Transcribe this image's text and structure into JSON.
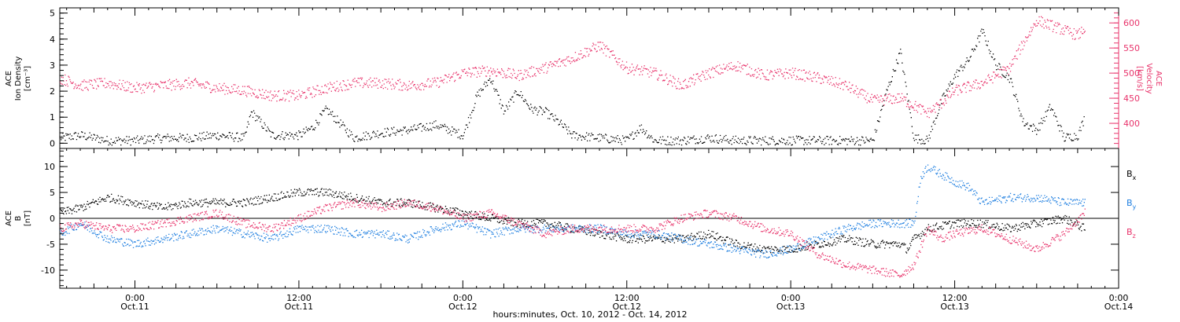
{
  "colors": {
    "ink": "#000000",
    "magenta": "#e8336b",
    "blue": "#1f7fe0"
  },
  "xaxis": {
    "label": "hours:minutes, Oct. 10, 2012 - Oct. 14, 2012",
    "range_hours": [
      -5.5,
      72
    ],
    "major_ticks": [
      {
        "hour": 0,
        "time": "0:00",
        "date": "Oct.11"
      },
      {
        "hour": 12,
        "time": "12:00",
        "date": "Oct.11"
      },
      {
        "hour": 24,
        "time": "0:00",
        "date": "Oct.12"
      },
      {
        "hour": 36,
        "time": "12:00",
        "date": "Oct.12"
      },
      {
        "hour": 48,
        "time": "0:00",
        "date": "Oct.13"
      },
      {
        "hour": 60,
        "time": "12:00",
        "date": "Oct.13"
      },
      {
        "hour": 72,
        "time": "0:00",
        "date": "Oct.14"
      }
    ],
    "data_end_hour": 69.5
  },
  "chart_data": [
    {
      "type": "scatter",
      "panel": "top",
      "ylabel_lines": [
        "ACE",
        "Ion Density",
        "[cm⁻³]"
      ],
      "ylim": [
        -0.2,
        5.2
      ],
      "y_ticks": [
        0,
        1,
        2,
        3,
        4,
        5
      ],
      "y2label_lines": [
        "ACE",
        "Velocity",
        "[km/s]"
      ],
      "y2lim": [
        350,
        630
      ],
      "y2_ticks": [
        400,
        450,
        500,
        550,
        600
      ],
      "series": [
        {
          "axis": "left",
          "color": "#000000",
          "x": [
            -5.5,
            -4,
            -2,
            0,
            2,
            4,
            6,
            8,
            8.5,
            10,
            12,
            13,
            14,
            16,
            18,
            20,
            22,
            24,
            25,
            26,
            27,
            28,
            29,
            30,
            31,
            32,
            34,
            36,
            37,
            38,
            40,
            42,
            44,
            46,
            48,
            50,
            52,
            54,
            55,
            56,
            57,
            58,
            59,
            60,
            61,
            62,
            63,
            64,
            65,
            66,
            67,
            68,
            69,
            69.5
          ],
          "y": [
            0.2,
            0.3,
            0.1,
            0.1,
            0.2,
            0.2,
            0.3,
            0.2,
            1.2,
            0.3,
            0.3,
            0.6,
            1.3,
            0.2,
            0.4,
            0.5,
            0.7,
            0.3,
            1.8,
            2.5,
            1.2,
            2.0,
            1.3,
            1.2,
            0.8,
            0.3,
            0.2,
            0.1,
            0.6,
            0.1,
            0.1,
            0.2,
            0.1,
            0.1,
            0.1,
            0.1,
            0.1,
            0.1,
            2.0,
            3.5,
            0.2,
            0.1,
            1.6,
            2.6,
            3.2,
            4.3,
            3.0,
            2.5,
            0.8,
            0.5,
            1.4,
            0.2,
            0.3,
            1.0
          ]
        },
        {
          "axis": "right",
          "color": "#e8336b",
          "x": [
            -5.5,
            -4,
            -2,
            0,
            2,
            4,
            6,
            8,
            10,
            12,
            14,
            16,
            18,
            20,
            22,
            24,
            26,
            28,
            30,
            32,
            34,
            36,
            38,
            40,
            42,
            44,
            46,
            48,
            50,
            52,
            54,
            56,
            58,
            59,
            60,
            62,
            64,
            65,
            66,
            67,
            68,
            69,
            69.5
          ],
          "y": [
            490,
            475,
            480,
            470,
            475,
            480,
            470,
            465,
            455,
            455,
            470,
            480,
            480,
            475,
            480,
            500,
            505,
            495,
            510,
            530,
            555,
            510,
            500,
            475,
            500,
            515,
            495,
            500,
            490,
            475,
            445,
            450,
            420,
            440,
            465,
            480,
            510,
            560,
            605,
            595,
            585,
            575,
            590
          ]
        }
      ]
    },
    {
      "type": "scatter",
      "panel": "bottom",
      "ylabel_lines": [
        "ACE",
        "B",
        "[nT]"
      ],
      "ylim": [
        -13.5,
        13.5
      ],
      "y_ticks": [
        -10,
        -5,
        0,
        5,
        10
      ],
      "legend": [
        {
          "label": "B",
          "sub": "x",
          "color": "#000000"
        },
        {
          "label": "B",
          "sub": "y",
          "color": "#1f7fe0"
        },
        {
          "label": "B",
          "sub": "z",
          "color": "#e8336b"
        }
      ],
      "series": [
        {
          "name": "Bx",
          "color": "#000000",
          "x": [
            -5.5,
            -4,
            -2,
            0,
            2,
            4,
            6,
            8,
            10,
            12,
            14,
            16,
            18,
            20,
            22,
            24,
            26,
            28,
            30,
            32,
            34,
            36,
            38,
            40,
            42,
            44,
            46,
            48,
            50,
            52,
            54,
            56,
            56.5,
            57,
            58,
            60,
            62,
            64,
            66,
            68,
            69.5
          ],
          "y": [
            1,
            2,
            4,
            3,
            2,
            3,
            3,
            3,
            4,
            5,
            5,
            4,
            3,
            3,
            2,
            1,
            0,
            -1,
            -1,
            -2,
            -3,
            -4,
            -4,
            -4,
            -3,
            -5,
            -6,
            -6,
            -5,
            -4,
            -5,
            -5,
            -6,
            -4,
            -2,
            -1,
            -1,
            -2,
            -1,
            0,
            -2
          ]
        },
        {
          "name": "By",
          "color": "#1f7fe0",
          "x": [
            -5.5,
            -4,
            -2,
            0,
            2,
            4,
            6,
            8,
            10,
            12,
            14,
            16,
            18,
            20,
            22,
            24,
            26,
            28,
            30,
            32,
            34,
            36,
            38,
            40,
            42,
            44,
            46,
            48,
            50,
            52,
            54,
            56,
            57,
            57.5,
            58,
            60,
            61,
            62,
            64,
            66,
            68,
            69.5
          ],
          "y": [
            -3,
            -1,
            -4,
            -5,
            -4,
            -3,
            -2,
            -3,
            -4,
            -2,
            -2,
            -3,
            -3,
            -4,
            -2,
            -1,
            -3,
            -2,
            -2,
            -2,
            -2,
            -3,
            -3,
            -4,
            -5,
            -6,
            -7,
            -6,
            -4,
            -2,
            -1,
            -1,
            -1,
            8,
            10,
            7,
            6,
            3,
            4,
            4,
            3,
            3
          ]
        },
        {
          "name": "Bz",
          "color": "#e8336b",
          "x": [
            -5.5,
            -4,
            -2,
            0,
            2,
            4,
            6,
            8,
            10,
            12,
            14,
            16,
            18,
            20,
            22,
            24,
            26,
            28,
            30,
            32,
            34,
            36,
            38,
            40,
            42,
            44,
            46,
            48,
            50,
            52,
            54,
            56,
            57,
            58,
            59,
            60,
            62,
            64,
            66,
            68,
            69.5
          ],
          "y": [
            -2,
            -1,
            -2,
            -2,
            -1,
            0,
            1,
            -1,
            -2,
            0,
            2,
            3,
            2,
            3,
            2,
            0,
            1,
            -1,
            -3,
            -2,
            -2,
            -2,
            -2,
            0,
            1,
            0,
            -2,
            -3,
            -7,
            -9,
            -10,
            -11,
            -9,
            -2,
            -4,
            -3,
            -2,
            -4,
            -6,
            -3,
            1
          ]
        }
      ]
    }
  ]
}
